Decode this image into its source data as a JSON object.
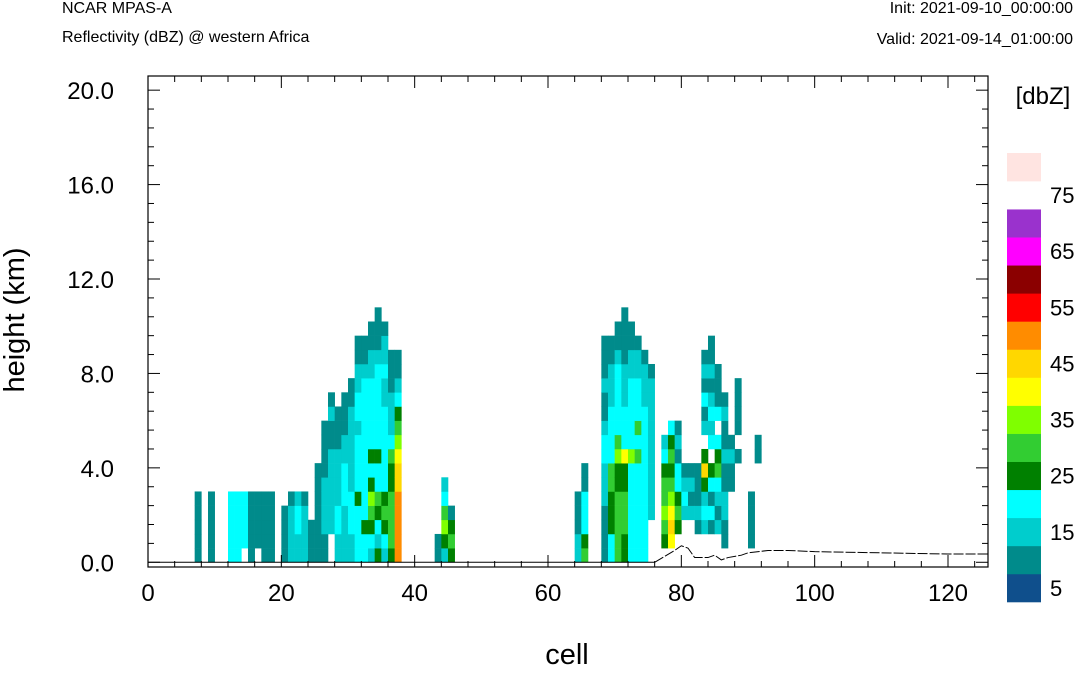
{
  "header": {
    "title": "NCAR MPAS-A",
    "subtitle": "Reflectivity (dBZ) @ western Africa",
    "init": "Init: 2021-09-10_00:00:00",
    "valid": "Valid: 2021-09-14_01:00:00"
  },
  "colorbar": {
    "title": "[dbZ]",
    "labels": [
      "5",
      "15",
      "25",
      "35",
      "45",
      "55",
      "65",
      "75"
    ],
    "levels": [
      0,
      5,
      10,
      15,
      20,
      25,
      30,
      35,
      40,
      45,
      50,
      55,
      60,
      65,
      70,
      75,
      80
    ],
    "colors": [
      "#0f4f8c",
      "#008b8b",
      "#00cdcd",
      "#00ffff",
      "#008000",
      "#32cd32",
      "#7fff00",
      "#ffff00",
      "#ffd700",
      "#ff8c00",
      "#ff0000",
      "#8b0000",
      "#ff00ff",
      "#9a32cd",
      "#ffffff",
      "#ffe4e1"
    ]
  },
  "chart_data": {
    "type": "heatmap",
    "xlabel": "cell",
    "ylabel": "height (km)",
    "xlim": [
      0,
      126
    ],
    "ylim": [
      -0.2,
      20.6
    ],
    "x_ticks": [
      "0",
      "20",
      "40",
      "60",
      "80",
      "100",
      "120"
    ],
    "y_ticks": [
      "0.0",
      "4.0",
      "8.0",
      "12.0",
      "16.0",
      "20.0"
    ],
    "cell_width": 1,
    "cell_height_km": 0.6,
    "columns": [
      {
        "x": 7.5,
        "dbz": [
          5,
          5,
          5,
          5,
          5
        ]
      },
      {
        "x": 9.5,
        "dbz": [
          5,
          5,
          5,
          5,
          5
        ]
      },
      {
        "x": 12.5,
        "dbz": [
          15,
          15,
          15,
          15,
          15
        ]
      },
      {
        "x": 13.5,
        "dbz": [
          15,
          15,
          15,
          15,
          15
        ]
      },
      {
        "x": 14.5,
        "dbz": [
          null,
          15,
          15,
          15,
          15
        ]
      },
      {
        "x": 15.5,
        "dbz": [
          5,
          5,
          5,
          5,
          5
        ]
      },
      {
        "x": 16.5,
        "dbz": [
          null,
          5,
          5,
          5,
          5
        ]
      },
      {
        "x": 17.5,
        "dbz": [
          5,
          5,
          5,
          5,
          5
        ]
      },
      {
        "x": 18.5,
        "dbz": [
          5,
          5,
          5,
          5,
          5
        ]
      },
      {
        "x": 20.5,
        "dbz": [
          5,
          5,
          5,
          5
        ]
      },
      {
        "x": 21.5,
        "dbz": [
          10,
          10,
          10,
          10,
          5
        ]
      },
      {
        "x": 22.5,
        "dbz": [
          10,
          10,
          15,
          15,
          10
        ]
      },
      {
        "x": 23.5,
        "dbz": [
          10,
          10,
          10,
          10,
          5
        ]
      },
      {
        "x": 24.5,
        "dbz": [
          5,
          5,
          5
        ]
      },
      {
        "x": 25.5,
        "dbz": [
          5,
          5,
          5,
          5,
          5,
          5,
          5
        ]
      },
      {
        "x": 26.5,
        "dbz": [
          5,
          5,
          10,
          10,
          10,
          10,
          5,
          5,
          5,
          5
        ]
      },
      {
        "x": 27.5,
        "dbz": [
          null,
          null,
          10,
          10,
          10,
          10,
          10,
          10,
          5,
          5,
          10,
          5
        ]
      },
      {
        "x": 28.5,
        "dbz": [
          10,
          10,
          15,
          15,
          10,
          10,
          10,
          10,
          5,
          5,
          5
        ]
      },
      {
        "x": 29.5,
        "dbz": [
          10,
          10,
          10,
          10,
          15,
          15,
          15,
          10,
          10,
          5,
          5,
          5
        ]
      },
      {
        "x": 30.5,
        "dbz": [
          10,
          10,
          15,
          15,
          15,
          10,
          10,
          10,
          10,
          10,
          10,
          5,
          5
        ]
      },
      {
        "x": 31.5,
        "dbz": [
          15,
          15,
          15,
          15,
          20,
          15,
          15,
          15,
          15,
          10,
          15,
          15,
          10,
          10,
          5,
          5
        ]
      },
      {
        "x": 32.5,
        "dbz": [
          15,
          15,
          20,
          15,
          15,
          15,
          15,
          15,
          15,
          15,
          15,
          15,
          15,
          10,
          5,
          5
        ]
      },
      {
        "x": 33.5,
        "dbz": [
          10,
          15,
          20,
          25,
          30,
          20,
          15,
          20,
          15,
          15,
          15,
          15,
          15,
          10,
          10,
          5,
          5
        ]
      },
      {
        "x": 34.5,
        "dbz": [
          20,
          10,
          15,
          20,
          25,
          15,
          15,
          20,
          15,
          15,
          15,
          15,
          15,
          15,
          10,
          5,
          5,
          5
        ]
      },
      {
        "x": 35.5,
        "dbz": [
          10,
          15,
          20,
          25,
          20,
          15,
          15,
          15,
          15,
          15,
          15,
          10,
          10,
          15,
          10,
          10,
          5
        ]
      },
      {
        "x": 36.5,
        "dbz": [
          20,
          25,
          25,
          25,
          25,
          20,
          20,
          25,
          15,
          10,
          10,
          10,
          5,
          5,
          5
        ]
      },
      {
        "x": 37.5,
        "dbz": [
          45,
          45,
          45,
          45,
          45,
          40,
          40,
          35,
          30,
          25,
          20,
          15,
          10,
          5,
          5
        ]
      },
      {
        "x": 43.5,
        "dbz": [
          5,
          5
        ]
      },
      {
        "x": 44.5,
        "dbz": [
          10,
          20,
          30,
          25,
          15,
          10
        ]
      },
      {
        "x": 45.5,
        "dbz": [
          20,
          25,
          20,
          5
        ]
      },
      {
        "x": 64.5,
        "dbz": [
          10,
          10,
          5,
          5,
          5
        ]
      },
      {
        "x": 65.5,
        "dbz": [
          25,
          20,
          15,
          15,
          15,
          5,
          5
        ]
      },
      {
        "x": 68.5,
        "dbz": [
          5,
          5,
          5,
          5,
          10,
          10,
          10,
          15,
          15,
          10,
          5,
          5,
          10,
          5,
          5,
          5
        ]
      },
      {
        "x": 69.5,
        "dbz": [
          15,
          15,
          20,
          20,
          20,
          25,
          25,
          15,
          15,
          15,
          15,
          10,
          10,
          10,
          5,
          5
        ]
      },
      {
        "x": 70.5,
        "dbz": [
          25,
          25,
          25,
          25,
          25,
          20,
          20,
          30,
          25,
          15,
          15,
          15,
          15,
          15,
          10,
          5,
          5
        ]
      },
      {
        "x": 71.5,
        "dbz": [
          20,
          20,
          25,
          25,
          25,
          20,
          20,
          35,
          15,
          15,
          15,
          10,
          10,
          10,
          5,
          5,
          5,
          5
        ]
      },
      {
        "x": 72.5,
        "dbz": [
          15,
          15,
          15,
          15,
          15,
          15,
          15,
          30,
          15,
          15,
          15,
          15,
          15,
          10,
          10,
          5,
          5
        ]
      },
      {
        "x": 73.5,
        "dbz": [
          15,
          15,
          15,
          15,
          15,
          15,
          15,
          25,
          15,
          25,
          15,
          15,
          15,
          10,
          10,
          5
        ]
      },
      {
        "x": 74.5,
        "dbz": [
          15,
          15,
          15,
          15,
          15,
          15,
          15,
          15,
          15,
          15,
          15,
          10,
          10,
          10,
          5
        ]
      },
      {
        "x": 75.5,
        "dbz": [
          null,
          null,
          null,
          10,
          10,
          10,
          10,
          10,
          10,
          10,
          10,
          10,
          10,
          5
        ]
      },
      {
        "x": 77.5,
        "dbz": [
          null,
          20,
          25,
          30,
          25,
          25,
          20,
          15,
          10
        ]
      },
      {
        "x": 78.5,
        "dbz": [
          null,
          35,
          40,
          35,
          30,
          25,
          20,
          25,
          20,
          15
        ]
      },
      {
        "x": 79.5,
        "dbz": [
          null,
          null,
          20,
          25,
          20,
          15,
          15,
          5,
          10,
          5
        ]
      },
      {
        "x": 80.5,
        "dbz": [
          null,
          null,
          null,
          10,
          15,
          10,
          5
        ]
      },
      {
        "x": 81.5,
        "dbz": [
          null,
          null,
          null,
          10,
          5,
          10,
          5
        ]
      },
      {
        "x": 82.5,
        "dbz": [
          null,
          null,
          5,
          10,
          5,
          5,
          5
        ]
      },
      {
        "x": 83.5,
        "dbz": [
          null,
          null,
          10,
          15,
          10,
          20,
          40,
          20,
          null,
          10,
          5,
          15,
          5,
          10,
          5
        ]
      },
      {
        "x": 84.5,
        "dbz": [
          null,
          null,
          5,
          15,
          5,
          15,
          20,
          null,
          15,
          10,
          15,
          10,
          5,
          10,
          5,
          5
        ]
      },
      {
        "x": 85.5,
        "dbz": [
          null,
          null,
          10,
          5,
          10,
          15,
          25,
          20,
          15,
          null,
          15,
          5,
          5,
          5
        ]
      },
      {
        "x": 86.5,
        "dbz": [
          null,
          5,
          5,
          10,
          10,
          5,
          5,
          10,
          5,
          5,
          10,
          5
        ]
      },
      {
        "x": 87.5,
        "dbz": [
          null,
          null,
          null,
          null,
          null,
          5,
          5,
          10,
          5
        ]
      },
      {
        "x": 88.5,
        "dbz": [
          null,
          null,
          null,
          null,
          null,
          null,
          null,
          5,
          null,
          5,
          5,
          5,
          5
        ]
      },
      {
        "x": 90.5,
        "dbz": [
          null,
          5,
          5,
          5,
          5
        ]
      },
      {
        "x": 91.5,
        "dbz": [
          null,
          null,
          null,
          null,
          null,
          null,
          null,
          5,
          5
        ]
      }
    ],
    "terrain": [
      [
        76,
        0.0
      ],
      [
        79,
        0.5
      ],
      [
        80,
        0.7
      ],
      [
        81,
        0.6
      ],
      [
        82,
        0.2
      ],
      [
        84,
        0.2
      ],
      [
        85,
        0.3
      ],
      [
        86,
        0.1
      ],
      [
        87,
        0.2
      ],
      [
        89,
        0.3
      ],
      [
        90,
        0.4
      ],
      [
        93,
        0.5
      ],
      [
        96,
        0.5
      ],
      [
        100,
        0.45
      ],
      [
        110,
        0.4
      ],
      [
        120,
        0.35
      ],
      [
        126,
        0.35
      ]
    ]
  }
}
